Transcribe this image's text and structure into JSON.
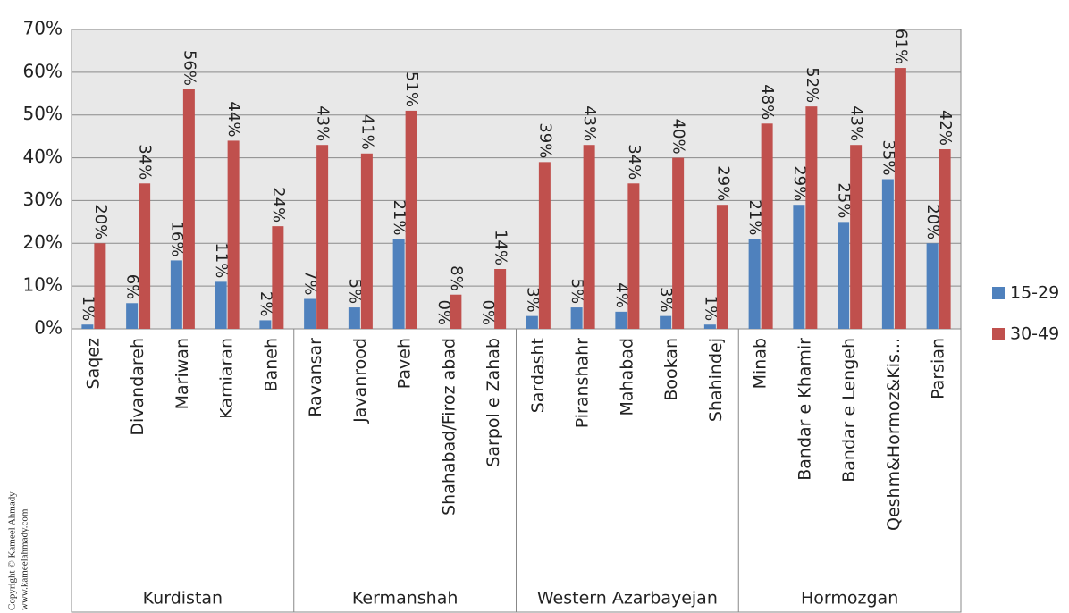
{
  "chart_data": {
    "type": "bar",
    "categories": [
      "Saqez",
      "Divandareh",
      "Mariwan",
      "Kamiaran",
      "Baneh",
      "Ravansar",
      "Javanrood",
      "Paveh",
      "Shahabad/Firoz abad",
      "Sarpol e Zahab",
      "Sardasht",
      "Piranshahr",
      "Mahabad",
      "Bookan",
      "Shahindej",
      "Minab",
      "Bandar e Khamir",
      "Bandar e Lengeh",
      "Qeshm&Hormoz&Kis...",
      "Parsian"
    ],
    "groups": [
      {
        "name": "Kurdistan",
        "size": 5
      },
      {
        "name": "Kermanshah",
        "size": 5
      },
      {
        "name": "Western Azarbayejan",
        "size": 5
      },
      {
        "name": "Hormozgan",
        "size": 5
      }
    ],
    "series": [
      {
        "name": "15-29",
        "color": "#4f81bd",
        "values": [
          1,
          6,
          16,
          11,
          2,
          7,
          5,
          21,
          0,
          0,
          3,
          5,
          4,
          3,
          1,
          21,
          29,
          25,
          35,
          20
        ],
        "value_labels": [
          "1%",
          "6%",
          "16%",
          "11%",
          "2%",
          "7%",
          "5%",
          "21%",
          "0%",
          "0%",
          "3%",
          "5%",
          "4%",
          "3%",
          "1%",
          "21%",
          "29%",
          "25%",
          "35%",
          "20%"
        ]
      },
      {
        "name": "30-49",
        "color": "#c0504d",
        "values": [
          20,
          34,
          56,
          44,
          24,
          43,
          41,
          51,
          8,
          14,
          39,
          43,
          34,
          40,
          29,
          48,
          52,
          43,
          61,
          42
        ],
        "value_labels": [
          "20%",
          "34%",
          "56%",
          "44%",
          "24%",
          "43%",
          "41%",
          "51%",
          "8%",
          "14%",
          "39%",
          "43%",
          "34%",
          "40%",
          "29%",
          "48%",
          "52%",
          "43%",
          "61%",
          "42%"
        ]
      }
    ],
    "ylim": [
      0,
      70
    ],
    "yticks": [
      {
        "value": 0,
        "label": "0%"
      },
      {
        "value": 10,
        "label": "10%"
      },
      {
        "value": 20,
        "label": "20%"
      },
      {
        "value": 30,
        "label": "30%"
      },
      {
        "value": 40,
        "label": "40%"
      },
      {
        "value": 50,
        "label": "50%"
      },
      {
        "value": 60,
        "label": "60%"
      },
      {
        "value": 70,
        "label": "70%"
      }
    ],
    "grid": true,
    "legend": "right",
    "copyright": [
      "Copyright © Kameel Ahmady",
      "www.kameelahmady.com"
    ]
  }
}
